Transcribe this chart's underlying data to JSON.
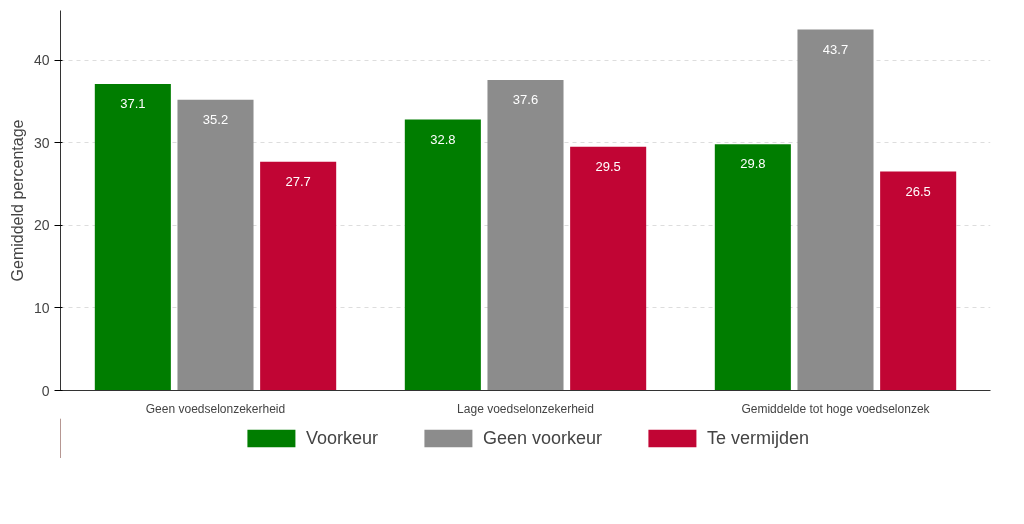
{
  "chart_data": {
    "type": "bar",
    "ylabel": "Gemiddeld percentage",
    "categories": [
      "Geen voedselonzekerheid",
      "Lage voedselonzekerheid",
      "Gemiddelde tot hoge voedselonzek"
    ],
    "series": [
      {
        "name": "Voorkeur",
        "color": "#007d00",
        "values": [
          37.1,
          32.8,
          29.8
        ]
      },
      {
        "name": "Geen voorkeur",
        "color": "#8c8c8c",
        "values": [
          35.2,
          37.6,
          43.7
        ]
      },
      {
        "name": "Te vermijden",
        "color": "#c10534",
        "values": [
          27.7,
          29.5,
          26.5
        ]
      }
    ],
    "ylim": [
      0,
      46
    ],
    "yticks": [
      0,
      10,
      20,
      30,
      40
    ],
    "grid": "y",
    "legend": "bottom",
    "data_labels": true
  }
}
